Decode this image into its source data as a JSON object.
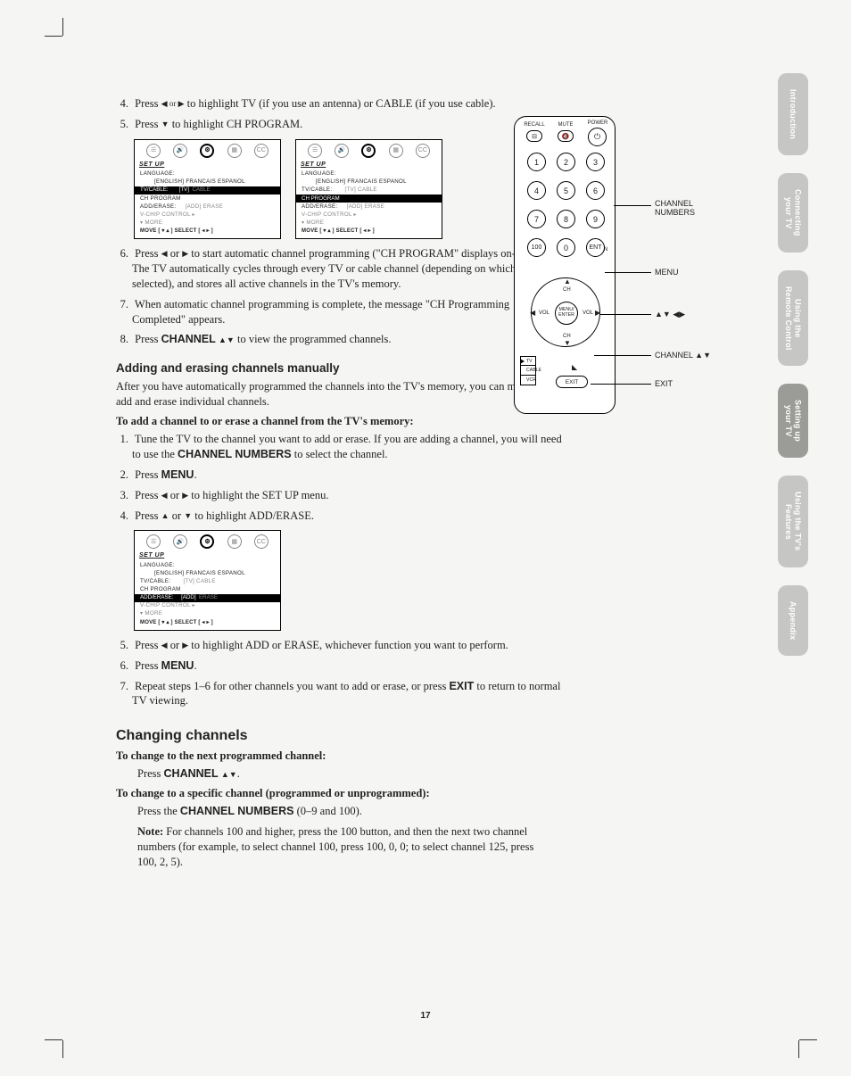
{
  "steps_a": [
    {
      "n": "4.",
      "text_pre": "Press ",
      "sym": "◀ or ▶",
      "text_post": " to highlight TV (if you use an antenna) or CABLE (if you use cable)."
    },
    {
      "n": "5.",
      "text_pre": "Press ",
      "sym": "▼",
      "text_post": " to highlight CH PROGRAM."
    }
  ],
  "osd": {
    "title": "SET UP",
    "lang": "LANGUAGE:",
    "lang_opts": "[ENGLISH] FRANCAIS ESPANOL",
    "tvcable": "TV/CABLE:",
    "tvcable_opts": "[TV]  CABLE",
    "chprog": "CH PROGRAM",
    "adderase": "ADD/ERASE:",
    "adderase_opts": "[ADD]  ERASE",
    "vchip": "V-CHIP CONTROL    ▸",
    "more": "▾ MORE",
    "foot": "MOVE [ ▾ ▴ ]      SELECT [ ◂  ▸ ]",
    "icons": [
      "☰",
      "🔊",
      "⚙",
      "▦",
      "CC"
    ]
  },
  "steps_b": [
    {
      "n": "6.",
      "html": "Press <span class='tri'>◀</span> or <span class='tri'>▶</span> to start automatic channel programming (\"CH PROGRAM\" displays on-screen). The TV automatically cycles through every TV or cable channel (depending on which you selected), and stores all active channels in the TV's memory."
    },
    {
      "n": "7.",
      "html": "When automatic channel programming is complete, the message \"CH Programming Completed\" appears."
    },
    {
      "n": "8.",
      "html": "Press <span class='bold'>CHANNEL <span class='sym'>▲▼</span></span> to view the programmed channels."
    }
  ],
  "add_erase": {
    "heading": "Adding and erasing channels manually",
    "intro": "After you have automatically programmed the channels into the TV's memory, you can manually add and erase individual channels.",
    "sub": "To add a channel to or erase a channel from the TV's memory:",
    "steps": [
      {
        "n": "1.",
        "html": "Tune the TV to the channel you want to add or erase. If you are adding a channel, you will need to use the <span class='bold'>CHANNEL NUMBERS</span> to select the channel."
      },
      {
        "n": "2.",
        "html": "Press <span class='bold'>MENU</span>."
      },
      {
        "n": "3.",
        "html": "Press <span class='tri'>◀</span> or <span class='tri'>▶</span> to highlight the SET UP menu."
      },
      {
        "n": "4.",
        "html": "Press <span class='tri'>▲</span> or <span class='tri'>▼</span> to highlight ADD/ERASE."
      }
    ],
    "steps2": [
      {
        "n": "5.",
        "html": "Press <span class='tri'>◀</span> or <span class='tri'>▶</span> to highlight ADD or ERASE, whichever function you want to perform."
      },
      {
        "n": "6.",
        "html": "Press <span class='bold'>MENU</span>."
      },
      {
        "n": "7.",
        "html": "Repeat steps 1–6 for other channels you want to add or erase, or press <span class='bold'>EXIT</span> to return to normal TV viewing."
      }
    ]
  },
  "changing": {
    "heading": "Changing channels",
    "sub1": "To change to the next programmed channel:",
    "line1": "Press <span class='bold'>CHANNEL <span class='sym'>▲▼</span></span>.",
    "sub2": "To change to a specific channel (programmed or unprogrammed):",
    "line2": "Press the <span class='bold'>CHANNEL NUMBERS</span> (0–9 and 100).",
    "note": "<b>Note:</b>  For channels 100 and higher, press the 100 button, and then the next two channel numbers (for example, to select channel 100, press 100, 0, 0; to select channel 125, press<br>100, 2, 5)."
  },
  "remote": {
    "top": {
      "recall": "RECALL",
      "mute": "MUTE",
      "power": "POWER"
    },
    "numbers": [
      "1",
      "2",
      "3",
      "4",
      "5",
      "6",
      "7",
      "8",
      "9",
      "100",
      "0",
      "ENT"
    ],
    "chrtn": "CH RTN",
    "dpad": {
      "center": "MENU/\nENTER",
      "ch": "CH",
      "vol": "VOL"
    },
    "switch": [
      "TV",
      "CABLE",
      "VCR"
    ],
    "exit": "EXIT"
  },
  "callouts": {
    "channel_numbers": "CHANNEL\nNUMBERS",
    "menu": "MENU",
    "arrows": "▲▼ ◀▶",
    "channel": "CHANNEL ▲▼",
    "exit": "EXIT"
  },
  "tabs": [
    "Introduction",
    "Connecting\nyour TV",
    "Using the\nRemote Control",
    "Setting up\nyour TV",
    "Using the TV's\nFeatures",
    "Appendix"
  ],
  "tab_active_bg": "#9b9b98",
  "page_number": "17"
}
